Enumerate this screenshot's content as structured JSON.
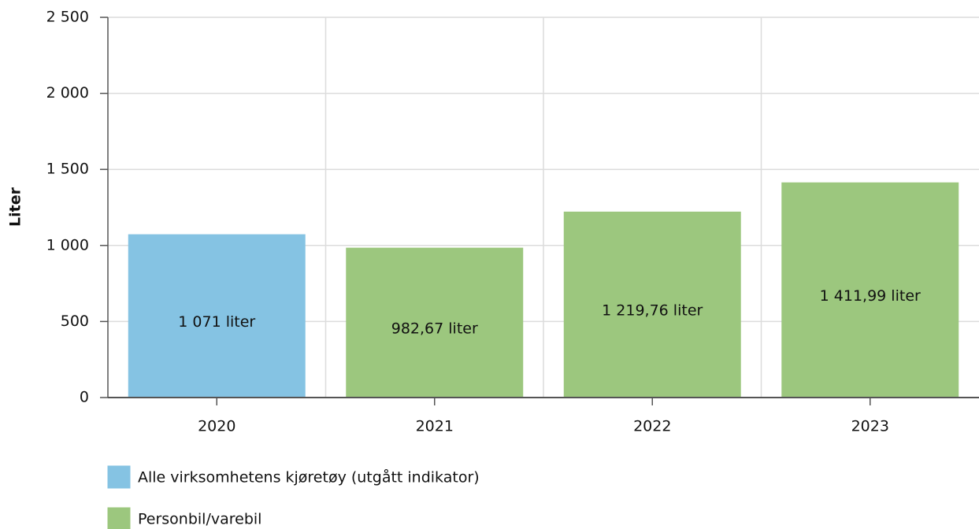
{
  "chart_data": {
    "type": "bar",
    "categories": [
      "2020",
      "2021",
      "2022",
      "2023"
    ],
    "series": [
      {
        "name": "Alle virksomhetens kjøretøy (utgått indikator)",
        "color": "#85c3e3",
        "values": [
          1071,
          null,
          null,
          null
        ],
        "value_labels": [
          "1 071 liter",
          null,
          null,
          null
        ]
      },
      {
        "name": "Personbil/varebil",
        "color": "#9cc77e",
        "values": [
          null,
          982.67,
          1219.76,
          1411.99
        ],
        "value_labels": [
          null,
          "982,67 liter",
          "1 219,76 liter",
          "1 411,99 liter"
        ]
      }
    ],
    "ylabel": "Liter",
    "ylim": [
      0,
      2500
    ],
    "yticks": [
      0,
      500,
      {
        "value": 1000,
        "label": "1 000"
      },
      {
        "value": 1500,
        "label": "1 500"
      },
      {
        "value": 2000,
        "label": "2 000"
      },
      {
        "value": 2500,
        "label": "2 500"
      }
    ],
    "grid": true
  }
}
